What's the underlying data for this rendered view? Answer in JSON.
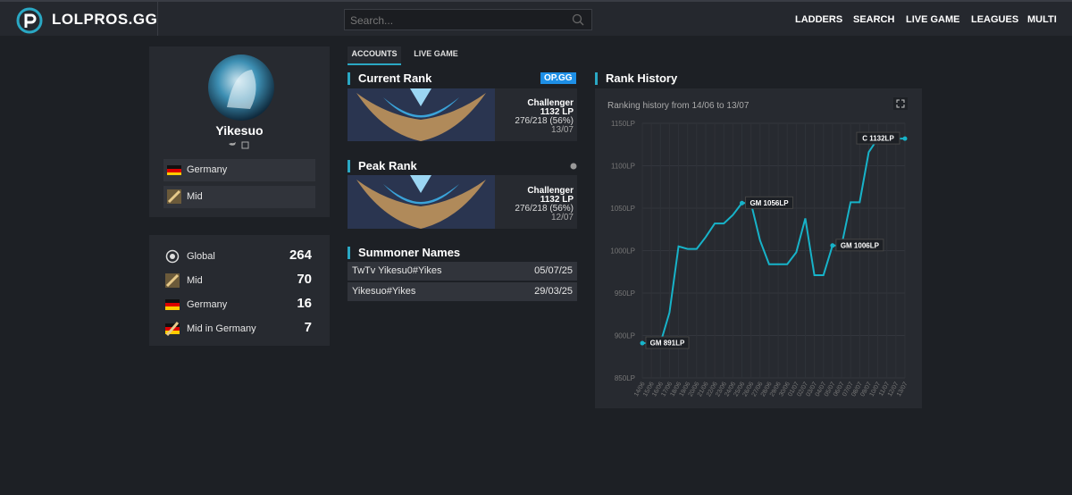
{
  "nav": {
    "logo": "LOLPROS.GG",
    "search_placeholder": "Search...",
    "links": [
      "LADDERS",
      "SEARCH",
      "LIVE GAME",
      "LEAGUES",
      "MULTI"
    ]
  },
  "profile": {
    "name": "Yikesuo",
    "country": "Germany",
    "role": "Mid"
  },
  "rankings": [
    {
      "label": "Global",
      "value": 264
    },
    {
      "label": "Mid",
      "value": 70
    },
    {
      "label": "Germany",
      "value": 16
    },
    {
      "label": "Mid in Germany",
      "value": 7
    }
  ],
  "tabs": [
    "ACCOUNTS",
    "LIVE GAME"
  ],
  "current_rank": {
    "title": "Current Rank",
    "badge": "OP.GG",
    "tier": "Challenger",
    "lp": "1132 LP",
    "record": "276/218 (56%)",
    "date": "13/07"
  },
  "peak_rank": {
    "title": "Peak Rank",
    "tier": "Challenger",
    "lp": "1132 LP",
    "record": "276/218 (56%)",
    "date": "12/07"
  },
  "summoner_names": {
    "title": "Summoner Names",
    "rows": [
      [
        "TwTv Yikesu0#Yikes",
        "05/07/25"
      ],
      [
        "Yikesuo#Yikes",
        "29/03/25"
      ]
    ]
  },
  "chart_data": {
    "type": "line",
    "title": "Rank History",
    "subtitle": "Ranking history from 14/06 to 13/07",
    "categories": [
      "14/06",
      "15/06",
      "16/06",
      "17/06",
      "18/06",
      "19/06",
      "20/06",
      "21/06",
      "22/06",
      "23/06",
      "24/06",
      "25/06",
      "26/06",
      "27/06",
      "28/06",
      "29/06",
      "30/06",
      "01/07",
      "02/07",
      "03/07",
      "04/07",
      "05/07",
      "06/07",
      "07/07",
      "08/07",
      "09/07",
      "10/07",
      "11/07",
      "12/07",
      "13/07"
    ],
    "series": [
      {
        "name": "LP",
        "color": "#17b3c9",
        "values": [
          891,
          891,
          891,
          927,
          1005,
          1002,
          1002,
          1016,
          1032,
          1032,
          1042,
          1056,
          1056,
          1012,
          984,
          984,
          984,
          998,
          1038,
          971,
          971,
          1006,
          1006,
          1057,
          1057,
          1116,
          1132,
          1132,
          1132,
          1132
        ],
        "value_labels": [
          "GM 891LP",
          null,
          null,
          null,
          null,
          null,
          null,
          null,
          null,
          null,
          null,
          "GM 1056LP",
          null,
          null,
          null,
          null,
          null,
          null,
          null,
          null,
          null,
          "GM 1006LP",
          null,
          null,
          null,
          null,
          null,
          null,
          null,
          "C 1132LP"
        ]
      }
    ],
    "ylim": [
      850,
      1150
    ],
    "yticks": [
      {
        "value": 850,
        "label": "850LP"
      },
      {
        "value": 900,
        "label": "900LP"
      },
      {
        "value": 950,
        "label": "950LP"
      },
      {
        "value": 1000,
        "label": "1000LP"
      },
      {
        "value": 1050,
        "label": "1050LP"
      },
      {
        "value": 1100,
        "label": "1100LP"
      },
      {
        "value": 1150,
        "label": "1150LP"
      }
    ],
    "grid": true
  }
}
